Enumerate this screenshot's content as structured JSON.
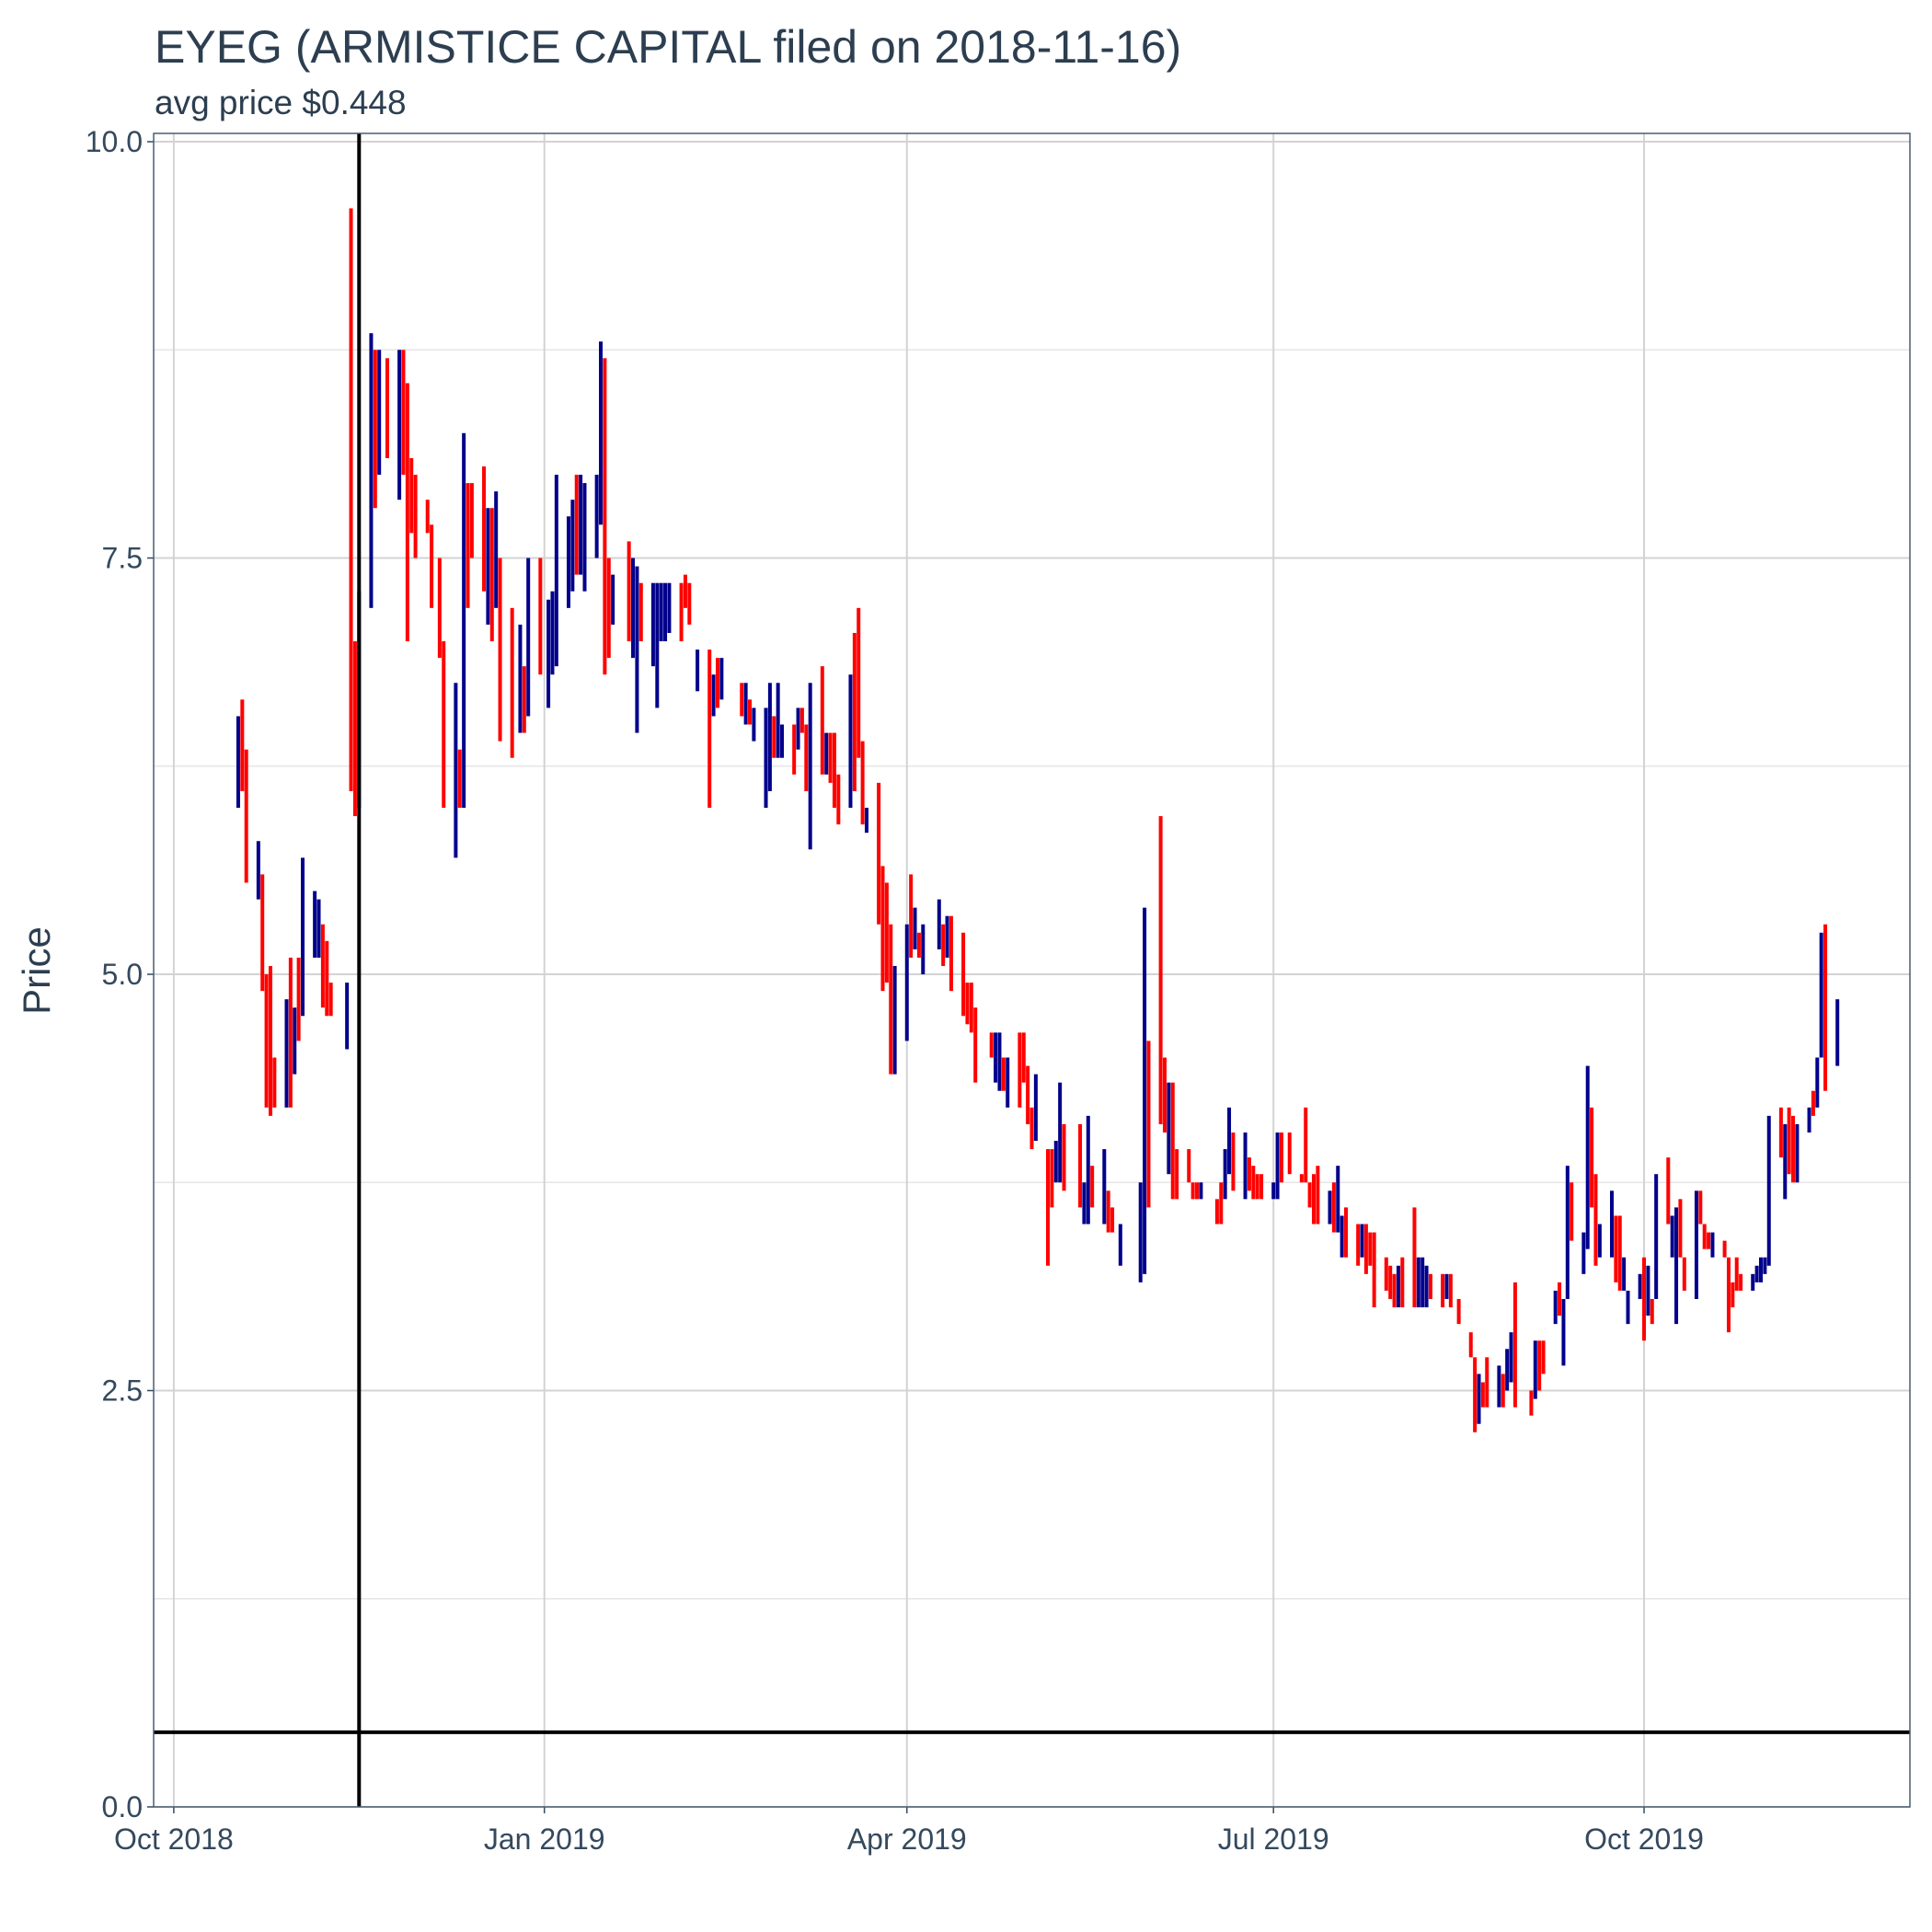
{
  "chart_data": {
    "type": "candlestick",
    "title": "EYEG (ARMISTICE CAPITAL filed on 2018-11-16)",
    "subtitle": "avg price $0.448",
    "y_label": "Price",
    "up_color": "#00008b",
    "down_color": "#ff0000",
    "vline": "2018-11-16",
    "hline": 0.448,
    "grid": true,
    "xlim": [
      "2018-09-26",
      "2019-12-06"
    ],
    "xticks": [
      {
        "value": "2018-10-01",
        "label": "Oct 2018"
      },
      {
        "value": "2019-01-01",
        "label": "Jan 2019"
      },
      {
        "value": "2019-04-01",
        "label": "Apr 2019"
      },
      {
        "value": "2019-07-01",
        "label": "Jul 2019"
      },
      {
        "value": "2019-10-01",
        "label": "Oct 2019"
      }
    ],
    "ylim": [
      0,
      10.05
    ],
    "yticks": [
      {
        "value": 0,
        "label": "0.0"
      },
      2.5,
      {
        "value": 5,
        "label": "5.0"
      },
      7.5,
      {
        "value": 10,
        "label": "10.0"
      }
    ],
    "yminorticks": [
      1.25,
      3.75,
      6.25,
      8.75
    ],
    "x": [
      "2018-10-17",
      "2018-10-18",
      "2018-10-19",
      "2018-10-22",
      "2018-10-23",
      "2018-10-24",
      "2018-10-25",
      "2018-10-26",
      "2018-10-29",
      "2018-10-30",
      "2018-10-31",
      "2018-11-01",
      "2018-11-02",
      "2018-11-05",
      "2018-11-06",
      "2018-11-07",
      "2018-11-08",
      "2018-11-09",
      "2018-11-13",
      "2018-11-14",
      "2018-11-15",
      "2018-11-16",
      "2018-11-19",
      "2018-11-20",
      "2018-11-21",
      "2018-11-23",
      "2018-11-26",
      "2018-11-27",
      "2018-11-28",
      "2018-11-29",
      "2018-11-30",
      "2018-12-03",
      "2018-12-04",
      "2018-12-06",
      "2018-12-07",
      "2018-12-10",
      "2018-12-11",
      "2018-12-12",
      "2018-12-13",
      "2018-12-14",
      "2018-12-17",
      "2018-12-18",
      "2018-12-19",
      "2018-12-20",
      "2018-12-21",
      "2018-12-24",
      "2018-12-26",
      "2018-12-27",
      "2018-12-28",
      "2018-12-31",
      "2019-01-02",
      "2019-01-03",
      "2019-01-04",
      "2019-01-07",
      "2019-01-08",
      "2019-01-09",
      "2019-01-10",
      "2019-01-11",
      "2019-01-14",
      "2019-01-15",
      "2019-01-16",
      "2019-01-17",
      "2019-01-18",
      "2019-01-22",
      "2019-01-23",
      "2019-01-24",
      "2019-01-25",
      "2019-01-28",
      "2019-01-29",
      "2019-01-30",
      "2019-01-31",
      "2019-02-01",
      "2019-02-04",
      "2019-02-05",
      "2019-02-06",
      "2019-02-08",
      "2019-02-11",
      "2019-02-12",
      "2019-02-13",
      "2019-02-14",
      "2019-02-19",
      "2019-02-20",
      "2019-02-21",
      "2019-02-22",
      "2019-02-25",
      "2019-02-26",
      "2019-02-27",
      "2019-02-28",
      "2019-03-01",
      "2019-03-04",
      "2019-03-05",
      "2019-03-06",
      "2019-03-07",
      "2019-03-08",
      "2019-03-11",
      "2019-03-12",
      "2019-03-13",
      "2019-03-14",
      "2019-03-15",
      "2019-03-18",
      "2019-03-19",
      "2019-03-20",
      "2019-03-21",
      "2019-03-22",
      "2019-03-25",
      "2019-03-26",
      "2019-03-27",
      "2019-03-28",
      "2019-03-29",
      "2019-04-01",
      "2019-04-02",
      "2019-04-03",
      "2019-04-04",
      "2019-04-05",
      "2019-04-09",
      "2019-04-10",
      "2019-04-11",
      "2019-04-12",
      "2019-04-15",
      "2019-04-16",
      "2019-04-17",
      "2019-04-18",
      "2019-04-22",
      "2019-04-23",
      "2019-04-24",
      "2019-04-25",
      "2019-04-26",
      "2019-04-29",
      "2019-04-30",
      "2019-05-01",
      "2019-05-02",
      "2019-05-03",
      "2019-05-06",
      "2019-05-07",
      "2019-05-08",
      "2019-05-09",
      "2019-05-10",
      "2019-05-14",
      "2019-05-15",
      "2019-05-16",
      "2019-05-17",
      "2019-05-20",
      "2019-05-21",
      "2019-05-22",
      "2019-05-24",
      "2019-05-29",
      "2019-05-30",
      "2019-05-31",
      "2019-06-03",
      "2019-06-04",
      "2019-06-05",
      "2019-06-06",
      "2019-06-07",
      "2019-06-10",
      "2019-06-11",
      "2019-06-12",
      "2019-06-13",
      "2019-06-17",
      "2019-06-18",
      "2019-06-19",
      "2019-06-20",
      "2019-06-21",
      "2019-06-24",
      "2019-06-25",
      "2019-06-26",
      "2019-06-27",
      "2019-06-28",
      "2019-07-01",
      "2019-07-02",
      "2019-07-03",
      "2019-07-05",
      "2019-07-08",
      "2019-07-09",
      "2019-07-10",
      "2019-07-11",
      "2019-07-12",
      "2019-07-15",
      "2019-07-16",
      "2019-07-17",
      "2019-07-18",
      "2019-07-19",
      "2019-07-22",
      "2019-07-23",
      "2019-07-24",
      "2019-07-25",
      "2019-07-26",
      "2019-07-29",
      "2019-07-30",
      "2019-07-31",
      "2019-08-01",
      "2019-08-02",
      "2019-08-05",
      "2019-08-06",
      "2019-08-07",
      "2019-08-08",
      "2019-08-09",
      "2019-08-12",
      "2019-08-13",
      "2019-08-14",
      "2019-08-16",
      "2019-08-19",
      "2019-08-20",
      "2019-08-21",
      "2019-08-22",
      "2019-08-23",
      "2019-08-26",
      "2019-08-27",
      "2019-08-28",
      "2019-08-29",
      "2019-08-30",
      "2019-09-03",
      "2019-09-04",
      "2019-09-05",
      "2019-09-06",
      "2019-09-09",
      "2019-09-10",
      "2019-09-11",
      "2019-09-12",
      "2019-09-13",
      "2019-09-16",
      "2019-09-17",
      "2019-09-18",
      "2019-09-19",
      "2019-09-20",
      "2019-09-23",
      "2019-09-24",
      "2019-09-25",
      "2019-09-26",
      "2019-09-27",
      "2019-09-30",
      "2019-10-01",
      "2019-10-02",
      "2019-10-03",
      "2019-10-04",
      "2019-10-07",
      "2019-10-08",
      "2019-10-09",
      "2019-10-10",
      "2019-10-11",
      "2019-10-14",
      "2019-10-15",
      "2019-10-16",
      "2019-10-17",
      "2019-10-18",
      "2019-10-21",
      "2019-10-22",
      "2019-10-23",
      "2019-10-24",
      "2019-10-25",
      "2019-10-28",
      "2019-10-29",
      "2019-10-30",
      "2019-10-31",
      "2019-11-01",
      "2019-11-04",
      "2019-11-05",
      "2019-11-06",
      "2019-11-07",
      "2019-11-08",
      "2019-11-11",
      "2019-11-12",
      "2019-11-13",
      "2019-11-14",
      "2019-11-15",
      "2019-11-18"
    ],
    "open": [
      6.0,
      6.65,
      6.35,
      5.45,
      5.6,
      5.0,
      5.05,
      4.5,
      4.2,
      5.1,
      4.4,
      5.1,
      4.75,
      5.1,
      5.1,
      5.3,
      5.2,
      4.95,
      4.55,
      9.6,
      7.0,
      6.0,
      7.2,
      8.75,
      8.0,
      8.7,
      7.85,
      8.75,
      8.55,
      8.1,
      8.0,
      7.85,
      7.7,
      7.5,
      7.0,
      5.7,
      6.35,
      6.0,
      7.95,
      7.95,
      8.05,
      7.1,
      7.8,
      7.2,
      7.5,
      7.2,
      6.45,
      6.85,
      6.55,
      7.5,
      6.6,
      6.8,
      6.85,
      7.2,
      7.3,
      8.0,
      7.4,
      7.3,
      7.5,
      7.7,
      8.7,
      7.5,
      7.1,
      7.6,
      6.9,
      6.45,
      7.35,
      6.85,
      6.6,
      7.0,
      7.0,
      7.05,
      7.35,
      7.4,
      7.35,
      6.7,
      6.95,
      6.55,
      6.9,
      6.65,
      6.75,
      6.5,
      6.65,
      6.4,
      6.0,
      6.1,
      6.55,
      6.3,
      6.3,
      6.5,
      6.35,
      6.6,
      6.5,
      5.75,
      6.85,
      6.2,
      6.45,
      6.45,
      6.2,
      6.0,
      7.05,
      7.2,
      6.4,
      5.85,
      6.15,
      5.65,
      5.55,
      5.3,
      4.4,
      4.6,
      5.6,
      5.15,
      5.25,
      5.0,
      5.15,
      5.3,
      5.1,
      5.35,
      5.25,
      4.95,
      4.95,
      4.8,
      4.65,
      4.35,
      4.3,
      4.5,
      4.2,
      4.65,
      4.65,
      4.45,
      4.2,
      4.0,
      3.95,
      3.95,
      3.75,
      3.75,
      4.1,
      4.1,
      3.5,
      3.5,
      3.85,
      3.5,
      3.7,
      3.6,
      3.25,
      3.15,
      3.2,
      4.6,
      5.95,
      4.5,
      3.8,
      4.35,
      3.95,
      3.95,
      3.75,
      3.75,
      3.65,
      3.65,
      3.75,
      3.65,
      3.8,
      4.05,
      3.65,
      3.9,
      3.85,
      3.8,
      3.8,
      3.65,
      3.65,
      4.05,
      4.05,
      3.8,
      4.2,
      3.75,
      3.8,
      3.85,
      3.5,
      3.75,
      3.45,
      3.3,
      3.6,
      3.5,
      3.3,
      3.5,
      3.45,
      3.45,
      3.3,
      3.25,
      3.2,
      3.0,
      3.3,
      3.6,
      3.0,
      3.0,
      3.0,
      3.2,
      3.2,
      3.05,
      3.2,
      3.05,
      2.85,
      2.7,
      2.3,
      2.55,
      2.7,
      2.4,
      2.6,
      2.5,
      2.55,
      3.15,
      2.5,
      2.45,
      2.8,
      2.8,
      2.9,
      3.15,
      2.65,
      3.05,
      3.75,
      3.2,
      3.35,
      4.2,
      3.8,
      3.3,
      3.3,
      3.55,
      3.55,
      3.1,
      2.9,
      3.05,
      3.3,
      2.95,
      3.05,
      3.05,
      3.9,
      3.3,
      2.9,
      3.65,
      3.3,
      3.05,
      3.7,
      3.5,
      3.45,
      3.3,
      3.4,
      3.3,
      3.15,
      3.3,
      3.2,
      3.1,
      3.15,
      3.15,
      3.2,
      3.25,
      4.2,
      3.65,
      4.2,
      4.15,
      3.75,
      4.05,
      4.3,
      4.2,
      4.5,
      5.3,
      4.45
    ],
    "close": [
      6.55,
      6.1,
      5.55,
      5.8,
      4.9,
      4.2,
      4.15,
      4.2,
      4.85,
      4.2,
      4.8,
      4.6,
      5.7,
      5.5,
      5.45,
      4.8,
      4.75,
      4.75,
      4.95,
      6.1,
      5.95,
      7.3,
      8.85,
      7.8,
      8.75,
      8.1,
      8.75,
      8.0,
      7.0,
      7.65,
      7.5,
      7.65,
      7.2,
      6.9,
      6.0,
      6.75,
      6.0,
      8.25,
      7.2,
      7.5,
      7.3,
      7.8,
      7.0,
      7.9,
      6.4,
      6.3,
      7.1,
      6.45,
      7.5,
      6.8,
      7.25,
      7.3,
      8.0,
      7.75,
      7.85,
      7.4,
      8.0,
      7.95,
      8.0,
      8.8,
      6.8,
      6.9,
      7.4,
      7.0,
      7.5,
      7.45,
      7.0,
      7.35,
      7.35,
      7.35,
      7.35,
      7.35,
      7.0,
      7.2,
      7.1,
      6.95,
      6.0,
      6.8,
      6.6,
      6.9,
      6.55,
      6.75,
      6.5,
      6.6,
      6.6,
      6.75,
      6.3,
      6.75,
      6.5,
      6.2,
      6.6,
      6.45,
      6.1,
      6.75,
      6.2,
      6.45,
      6.15,
      6.0,
      5.9,
      6.8,
      6.1,
      6.3,
      5.9,
      6.0,
      5.3,
      4.9,
      4.95,
      4.4,
      5.05,
      5.3,
      5.1,
      5.4,
      5.1,
      5.3,
      5.45,
      5.05,
      5.35,
      4.9,
      4.75,
      4.7,
      4.65,
      4.35,
      4.5,
      4.65,
      4.65,
      4.3,
      4.5,
      4.2,
      4.35,
      4.1,
      3.95,
      4.4,
      3.25,
      3.6,
      4.0,
      4.35,
      3.7,
      3.6,
      3.75,
      4.15,
      3.6,
      3.95,
      3.45,
      3.45,
      3.5,
      3.75,
      5.4,
      3.6,
      4.1,
      4.05,
      4.35,
      3.65,
      3.65,
      3.75,
      3.65,
      3.65,
      3.75,
      3.5,
      3.5,
      3.95,
      4.2,
      3.7,
      4.05,
      3.7,
      3.65,
      3.65,
      3.65,
      3.75,
      4.05,
      3.75,
      3.8,
      3.75,
      3.75,
      3.6,
      3.5,
      3.5,
      3.7,
      3.45,
      3.85,
      3.55,
      3.3,
      3.25,
      3.5,
      3.2,
      3.25,
      3.0,
      3.1,
      3.05,
      3.0,
      3.25,
      3.0,
      3.0,
      3.3,
      3.3,
      3.25,
      3.05,
      3.0,
      3.2,
      3.0,
      2.9,
      2.7,
      2.25,
      2.6,
      2.4,
      2.4,
      2.65,
      2.4,
      2.75,
      2.85,
      2.4,
      2.35,
      2.8,
      2.5,
      2.6,
      3.1,
      2.95,
      3.05,
      3.85,
      3.4,
      3.45,
      4.45,
      3.6,
      3.25,
      3.5,
      3.7,
      3.15,
      3.1,
      3.3,
      3.1,
      3.2,
      2.8,
      3.25,
      2.9,
      3.8,
      3.5,
      3.55,
      3.6,
      3.3,
      3.1,
      3.7,
      3.5,
      3.35,
      3.35,
      3.45,
      3.3,
      2.85,
      3.0,
      3.1,
      3.1,
      3.2,
      3.25,
      3.3,
      3.3,
      4.15,
      3.9,
      4.1,
      3.8,
      3.75,
      4.1,
      4.2,
      4.15,
      4.5,
      5.25,
      4.3,
      4.85
    ]
  }
}
